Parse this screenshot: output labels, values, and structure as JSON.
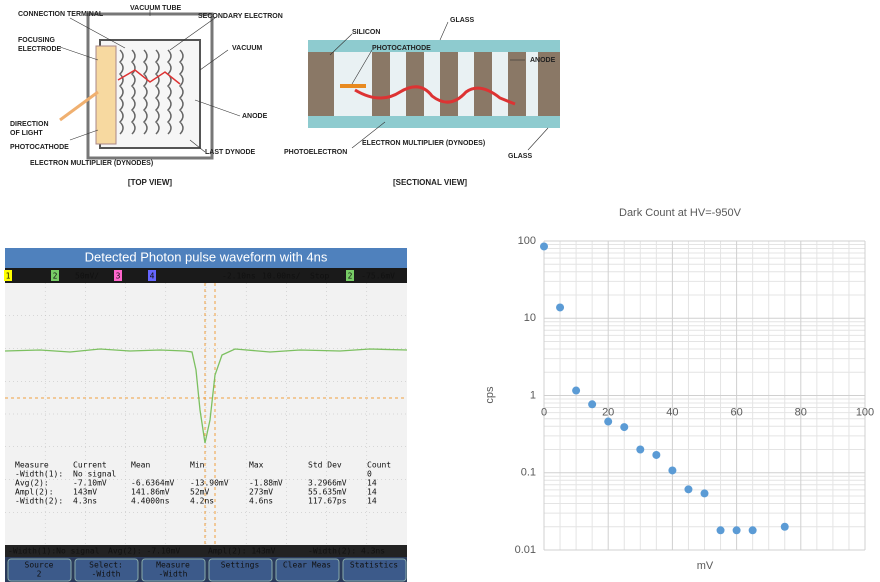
{
  "top_view": {
    "labels": [
      "CONNECTION TERMINAL",
      "VACUUM TUBE",
      "SECONDARY ELECTRON",
      "FOCUSING",
      "ELECTRODE",
      "VACUUM",
      "DIRECTION",
      "OF LIGHT",
      "ANODE",
      "PHOTOCATHODE",
      "LAST DYNODE",
      "ELECTRON MULTIPLIER (DYNODES)"
    ],
    "caption": "[TOP VIEW]"
  },
  "sectional_view": {
    "labels": [
      "SILICON",
      "PHOTOCATHODE",
      "GLASS",
      "ANODE",
      "PHOTOELECTRON",
      "ELECTRON MULTIPLIER (DYNODES)",
      "GLASS"
    ],
    "caption": "[SECTIONAL VIEW]"
  },
  "oscilloscope": {
    "title": "Detected Photon pulse waveform with 4ns",
    "header": [
      "1",
      "2",
      "50mV/",
      "3",
      "4",
      "-2.10ns",
      "10.00ns/",
      "Stop",
      "2",
      "-75.6mV"
    ],
    "table": {
      "header": [
        "Measure",
        "Current",
        "Mean",
        "Min",
        "Max",
        "Std Dev",
        "Count"
      ],
      "rows": [
        {
          "measure": "-Width(1):",
          "current": "No signal",
          "count": "0"
        },
        {
          "measure": "Avg(2):",
          "current": "-7.10mV",
          "mean": "-6.6364mV",
          "min": "-13.90mV",
          "max": "-1.88mV",
          "std_dev": "3.2966mV",
          "count": "14"
        },
        {
          "measure": "Ampl(2):",
          "current": "143mV",
          "mean": "141.86mV",
          "min": "52mV",
          "max": "273mV",
          "std_dev": "55.635mV",
          "count": "14"
        },
        {
          "measure": "-Width(2):",
          "current": "4.3ns",
          "mean": "4.4000ns",
          "min": "4.2ns",
          "max": "4.6ns",
          "std_dev": "117.67ps",
          "count": "14"
        }
      ]
    },
    "status": [
      "-Width(1):No signal",
      "Avg(2): -7.10mV",
      "Ampl(2): 143mV",
      "-Width(2): 4.3ns"
    ],
    "softkeys": [
      [
        "Source",
        "2"
      ],
      [
        "Select:",
        "-Width"
      ],
      [
        "Measure",
        "-Width"
      ],
      [
        "Settings"
      ],
      [
        "Clear Meas"
      ],
      [
        "Statistics"
      ]
    ]
  },
  "chart_data": {
    "type": "scatter",
    "title": "Dark Count at HV=-950V",
    "x_label": "mV",
    "y_label": "cps",
    "x": [
      0,
      5,
      10,
      15,
      20,
      25,
      30,
      35,
      40,
      45,
      50,
      55,
      60,
      65,
      75
    ],
    "series": [
      {
        "color": "#5b9bd5",
        "values": [
          85,
          13.8,
          1.16,
          0.77,
          0.46,
          0.39,
          0.2,
          0.17,
          0.107,
          0.061,
          0.054,
          0.018,
          0.018,
          0.018,
          0.02
        ]
      }
    ],
    "xlim": [
      0,
      100
    ],
    "xticks": [
      0,
      20,
      40,
      60,
      80,
      100
    ],
    "ylim": [
      0.01,
      100
    ],
    "yticks": [
      0.01,
      0.1,
      1,
      10,
      100
    ],
    "ylog": true,
    "grid": true,
    "minor_grid": true,
    "x_axis_at": 1
  }
}
